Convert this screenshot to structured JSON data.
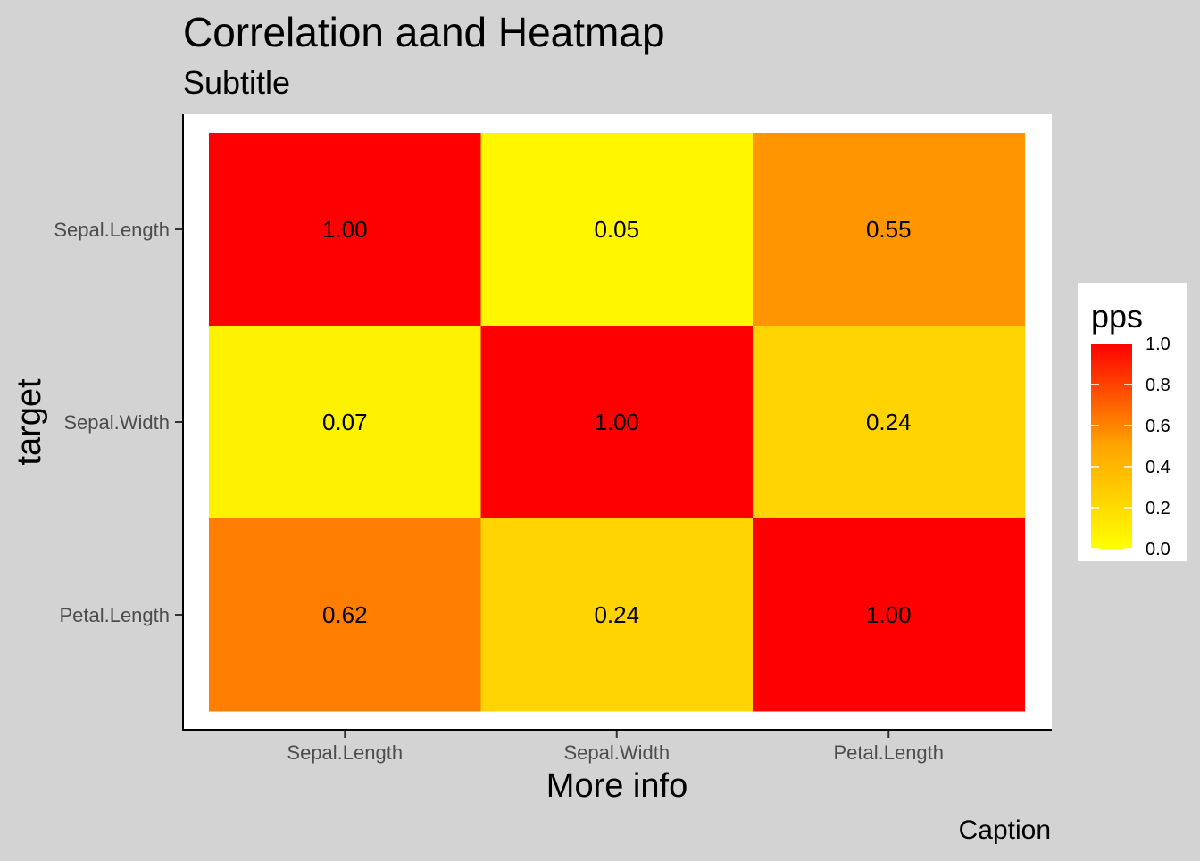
{
  "chart_data": {
    "type": "heatmap",
    "title": "Correlation aand Heatmap",
    "subtitle": "Subtitle",
    "caption": "Caption",
    "xlabel": "More info",
    "ylabel": "target",
    "x_categories": [
      "Sepal.Length",
      "Sepal.Width",
      "Petal.Length"
    ],
    "y_categories": [
      "Sepal.Length",
      "Sepal.Width",
      "Petal.Length"
    ],
    "values": [
      [
        1.0,
        0.05,
        0.55
      ],
      [
        0.07,
        1.0,
        0.24
      ],
      [
        0.62,
        0.24,
        1.0
      ]
    ],
    "cell_labels": [
      [
        "1.00",
        "0.05",
        "0.55"
      ],
      [
        "0.07",
        "1.00",
        "0.24"
      ],
      [
        "0.62",
        "0.24",
        "1.00"
      ]
    ],
    "color_scale": {
      "low_color": "#ffff00",
      "mid_color": "#ffa500",
      "high_color": "#ff0000",
      "range": [
        0,
        1
      ]
    },
    "legend": {
      "title": "pps",
      "placement": "right",
      "ticks": [
        "0.0",
        "0.2",
        "0.4",
        "0.6",
        "0.8",
        "1.0"
      ]
    },
    "grid": false,
    "colors": {
      "background": "#d3d3d3",
      "panel": "#ffffff",
      "axis_line": "#000000",
      "tick_text": "#4d4d4d",
      "title_text": "#000000"
    }
  }
}
